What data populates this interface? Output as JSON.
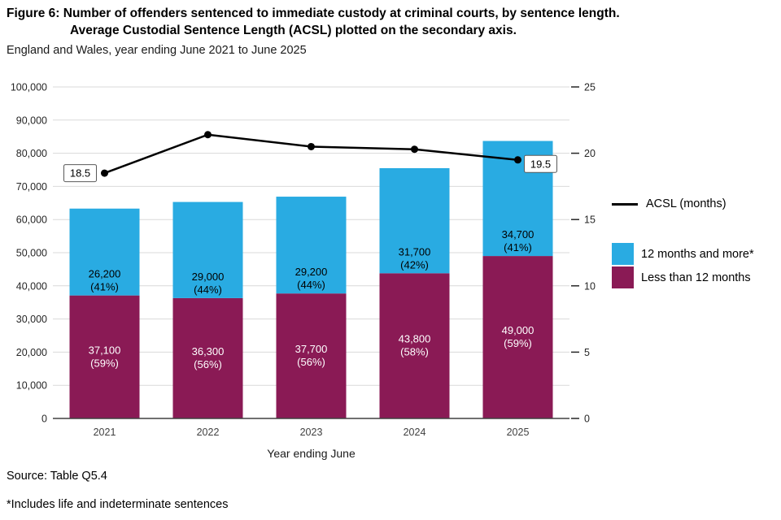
{
  "header": {
    "title_line1": "Figure 6: Number of offenders sentenced to immediate custody at criminal courts, by sentence length.",
    "title_line2": "Average Custodial Sentence Length (ACSL) plotted on the secondary axis.",
    "subtitle": "England and Wales, year ending June 2021 to June 2025"
  },
  "footer": {
    "source": "Source: Table Q5.4",
    "footnote": "*Includes life and indeterminate sentences"
  },
  "colors": {
    "blue": "#29ABE2",
    "maroon": "#8A1A55",
    "line": "#000000",
    "grid": "#d9d9d9",
    "axis": "#404040",
    "tick_text": "#262626"
  },
  "legend": {
    "line_label": "ACSL (months)",
    "items": [
      {
        "label": "12 months and more*",
        "color_key": "blue"
      },
      {
        "label": "Less than 12 months",
        "color_key": "maroon"
      }
    ]
  },
  "chart_data": {
    "type": "bar",
    "subtype": "stacked-bars-with-secondary-axis-line",
    "title": "Figure 6: Number of offenders sentenced to immediate custody at criminal courts, by sentence length. Average Custodial Sentence Length (ACSL) plotted on the secondary axis.",
    "xlabel": "Year ending June",
    "categories": [
      "2021",
      "2022",
      "2023",
      "2024",
      "2025"
    ],
    "series": [
      {
        "name": "Less than 12 months",
        "color_key": "maroon",
        "label_color": "#ffffff",
        "values": [
          37100,
          36300,
          37700,
          43800,
          49000
        ],
        "segment_labels": [
          [
            "37,100",
            "(59%)"
          ],
          [
            "36,300",
            "(56%)"
          ],
          [
            "37,700",
            "(56%)"
          ],
          [
            "43,800",
            "(58%)"
          ],
          [
            "49,000",
            "(59%)"
          ]
        ]
      },
      {
        "name": "12 months and more*",
        "color_key": "blue",
        "label_color": "#000000",
        "values": [
          26200,
          29000,
          29200,
          31700,
          34700
        ],
        "segment_labels": [
          [
            "26,200",
            "(41%)"
          ],
          [
            "29,000",
            "(44%)"
          ],
          [
            "29,200",
            "(44%)"
          ],
          [
            "31,700",
            "(42%)"
          ],
          [
            "34,700",
            "(41%)"
          ]
        ]
      }
    ],
    "line_series": {
      "name": "ACSL (months)",
      "values": [
        18.5,
        21.4,
        20.5,
        20.3,
        19.5
      ],
      "first_label": "18.5",
      "last_label": "19.5"
    },
    "left_axis": {
      "min": 0,
      "max": 100000,
      "step": 10000,
      "tick_labels": [
        "0",
        "10,000",
        "20,000",
        "30,000",
        "40,000",
        "50,000",
        "60,000",
        "70,000",
        "80,000",
        "90,000",
        "100,000"
      ]
    },
    "right_axis": {
      "min": 0,
      "max": 25,
      "step": 5,
      "tick_labels": [
        "0",
        "5",
        "10",
        "15",
        "20",
        "25"
      ]
    },
    "grid": true,
    "legend_position": "right"
  }
}
